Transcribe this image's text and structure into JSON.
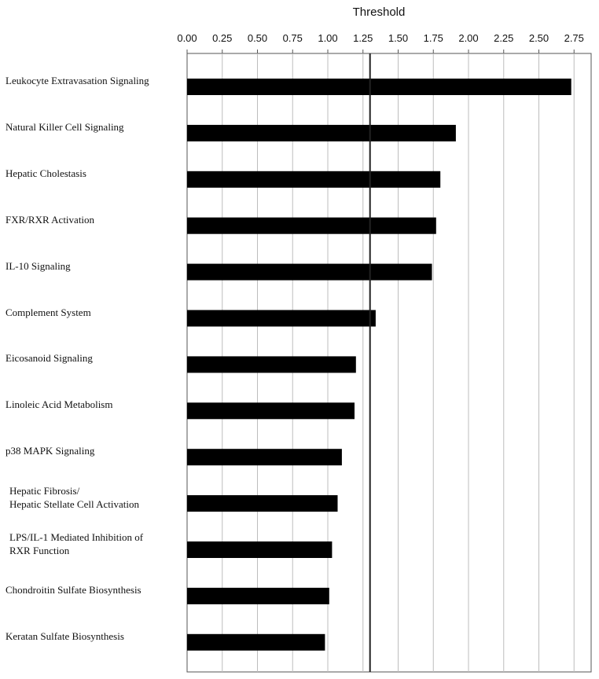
{
  "chart_data": {
    "type": "bar",
    "orientation": "horizontal",
    "title": "Threshold",
    "xlabel": "",
    "ylabel": "",
    "xlim": [
      0,
      2.7
    ],
    "ticks": [
      "0.00",
      "0.25",
      "0.50",
      "0.75",
      "1.00",
      "1.25",
      "1.50",
      "1.75",
      "2.00",
      "2.25",
      "2.50",
      "2.75"
    ],
    "tick_values": [
      0,
      0.25,
      0.5,
      0.75,
      1.0,
      1.25,
      1.5,
      1.75,
      2.0,
      2.25,
      2.5,
      2.75
    ],
    "threshold_value": 1.3,
    "grid": true,
    "bar_color": "#000000",
    "categories": [
      [
        "Leukocyte Extravasation Signaling"
      ],
      [
        "Natural Killer Cell Signaling"
      ],
      [
        "Hepatic Cholestasis"
      ],
      [
        "FXR/RXR Activation"
      ],
      [
        "IL-10 Signaling"
      ],
      [
        "Complement System"
      ],
      [
        "Eicosanoid Signaling"
      ],
      [
        "Linoleic Acid Metabolism"
      ],
      [
        "p38 MAPK Signaling"
      ],
      [
        "Hepatic Fibrosis/",
        "Hepatic Stellate Cell Activation"
      ],
      [
        "LPS/IL-1 Mediated Inhibition of",
        "RXR Function"
      ],
      [
        "Chondroitin Sulfate Biosynthesis"
      ],
      [
        "Keratan Sulfate Biosynthesis"
      ]
    ],
    "values": [
      2.73,
      1.91,
      1.8,
      1.77,
      1.74,
      1.34,
      1.2,
      1.19,
      1.1,
      1.07,
      1.03,
      1.01,
      0.98
    ]
  }
}
